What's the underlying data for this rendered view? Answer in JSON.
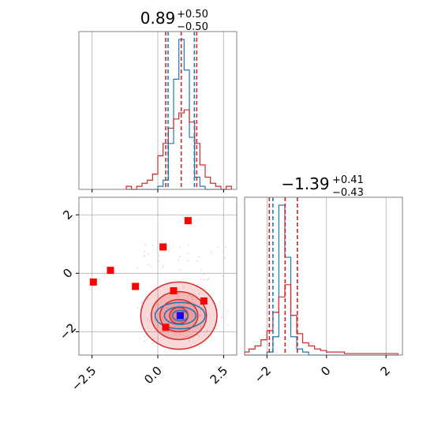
{
  "chart_data": [
    {
      "panel": "marginal-param-1",
      "type": "histogram",
      "title": {
        "value": "0.89",
        "plus": "+0.50",
        "minus": "−0.50"
      },
      "xlim": [
        -3.0,
        3.0
      ],
      "bin_edges": [
        -1.2,
        -1.0,
        -0.8,
        -0.6,
        -0.4,
        -0.2,
        0.0,
        0.2,
        0.4,
        0.6,
        0.8,
        1.0,
        1.2,
        1.4,
        1.6,
        1.8,
        2.0,
        2.2,
        2.4,
        2.6,
        2.8
      ],
      "series": [
        {
          "color": "#1f77b4",
          "counts": [
            0.0,
            0.0,
            0.0,
            0.0,
            0.0,
            0.0,
            0.02,
            0.06,
            0.3,
            0.72,
            0.98,
            0.78,
            0.34,
            0.08,
            0.02,
            0.0,
            0.0,
            0.0,
            0.0,
            0.0
          ]
        },
        {
          "color": "#d62728",
          "counts": [
            0.02,
            0.0,
            0.02,
            0.04,
            0.06,
            0.1,
            0.22,
            0.3,
            0.4,
            0.46,
            0.5,
            0.52,
            0.44,
            0.3,
            0.16,
            0.08,
            0.04,
            0.02,
            0.0,
            0.02
          ]
        }
      ],
      "quantile_lines": [
        {
          "color": "#1f77b4",
          "values": [
            0.39,
            0.89,
            1.39
          ]
        },
        {
          "color": "#d62728",
          "values": [
            0.3,
            0.89,
            1.48
          ]
        }
      ]
    },
    {
      "panel": "joint-2d",
      "type": "scatter",
      "xlim": [
        -3.0,
        3.0
      ],
      "ylim": [
        -2.8,
        2.6
      ],
      "xticks": [
        "−2.5",
        "0.0",
        "2.5"
      ],
      "yticks": [
        "2",
        "0",
        "−2"
      ],
      "contours": [
        {
          "color": "#d62728",
          "center": [
            0.8,
            -1.45
          ],
          "radii": [
            [
              1.45,
              1.15
            ],
            [
              1.05,
              0.82
            ],
            [
              0.72,
              0.55
            ],
            [
              0.35,
              0.28
            ]
          ]
        },
        {
          "color": "#1f77b4",
          "center": [
            0.85,
            -1.45
          ],
          "radii": [
            [
              0.95,
              0.45
            ],
            [
              0.6,
              0.3
            ],
            [
              0.3,
              0.18
            ]
          ]
        }
      ],
      "points": [
        {
          "x": -2.45,
          "y": -0.3,
          "color": "#ff0000"
        },
        {
          "x": -1.8,
          "y": 0.1,
          "color": "#ff0000"
        },
        {
          "x": -0.85,
          "y": -0.45,
          "color": "#ff0000"
        },
        {
          "x": 0.2,
          "y": 0.9,
          "color": "#ff0000"
        },
        {
          "x": 1.15,
          "y": 1.8,
          "color": "#ff0000"
        },
        {
          "x": 0.6,
          "y": -0.6,
          "color": "#ff0000"
        },
        {
          "x": 1.75,
          "y": -0.95,
          "color": "#ff0000"
        },
        {
          "x": 0.3,
          "y": -1.85,
          "color": "#ff0000"
        },
        {
          "x": 0.85,
          "y": -1.45,
          "color": "#0000ff"
        }
      ]
    },
    {
      "panel": "marginal-param-2",
      "type": "histogram",
      "title": {
        "value": "−1.39",
        "plus": "+0.41",
        "minus": "−0.43"
      },
      "xlim": [
        -2.75,
        2.55
      ],
      "xticks": [
        "−2",
        "0",
        "2"
      ],
      "bin_edges": [
        -2.8,
        -2.6,
        -2.4,
        -2.2,
        -2.0,
        -1.8,
        -1.6,
        -1.4,
        -1.2,
        -1.0,
        -0.8,
        -0.6,
        -0.4,
        -0.2,
        0.0,
        0.2,
        0.4,
        0.6,
        0.8,
        1.0,
        1.2,
        1.4,
        1.6,
        1.8,
        2.0,
        2.2,
        2.4
      ],
      "series": [
        {
          "color": "#1f77b4",
          "counts": [
            0.0,
            0.0,
            0.0,
            0.0,
            0.02,
            0.12,
            0.98,
            0.64,
            0.12,
            0.04,
            0.02,
            0.0,
            0.0,
            0.0,
            0.0,
            0.0,
            0.0,
            0.0,
            0.0,
            0.0,
            0.0,
            0.0,
            0.0,
            0.0,
            0.0,
            0.0
          ]
        },
        {
          "color": "#d62728",
          "counts": [
            0.02,
            0.04,
            0.06,
            0.1,
            0.16,
            0.28,
            0.38,
            0.46,
            0.26,
            0.14,
            0.08,
            0.06,
            0.04,
            0.03,
            0.02,
            0.02,
            0.02,
            0.01,
            0.01,
            0.01,
            0.01,
            0.01,
            0.01,
            0.01,
            0.01,
            0.01
          ]
        }
      ],
      "quantile_lines": [
        {
          "color": "#1f77b4",
          "values": [
            -1.8,
            -1.39,
            -0.98
          ]
        },
        {
          "color": "#d62728",
          "values": [
            -1.92,
            -1.39,
            -0.98
          ]
        }
      ]
    }
  ],
  "style": {
    "grid_color": "#b0b0b0",
    "axis_color": "#808080"
  }
}
